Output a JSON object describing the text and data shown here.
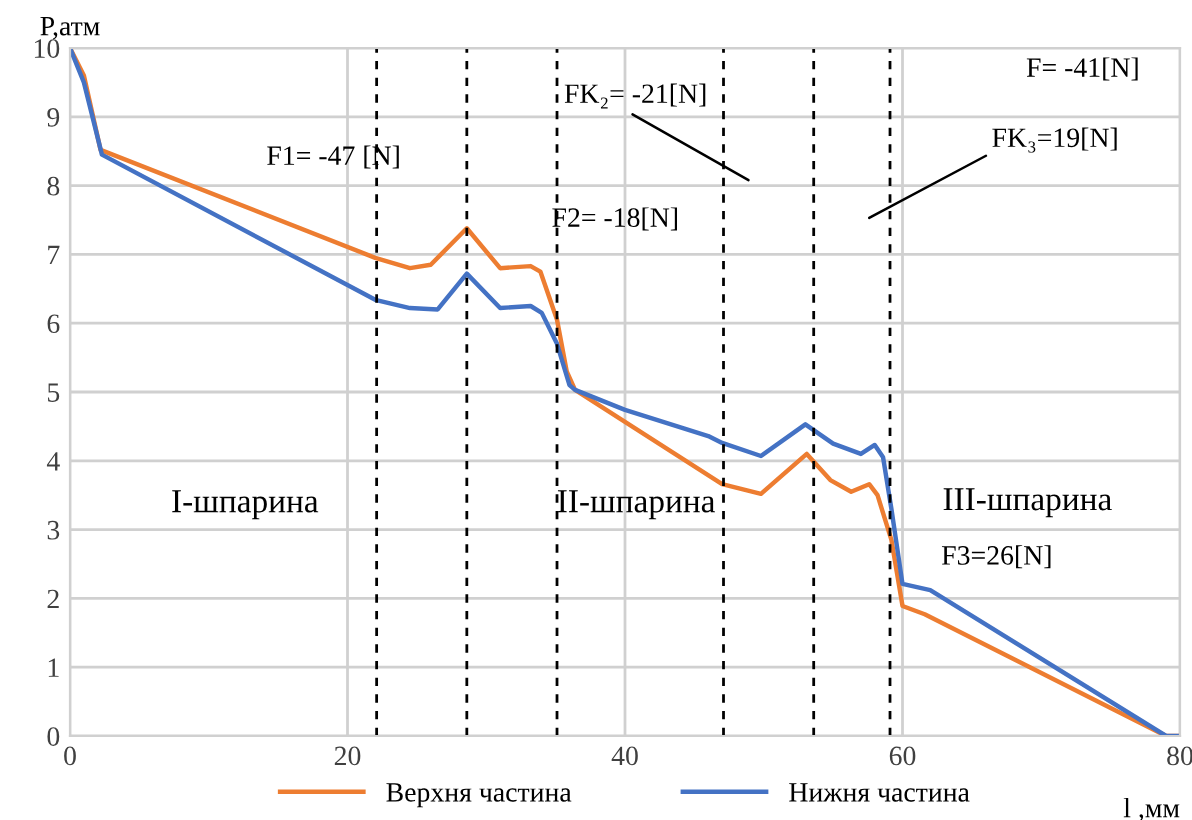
{
  "chart_data": {
    "type": "line",
    "xlabel": "l ,мм",
    "ylabel": "P,атм",
    "xlim": [
      0,
      80
    ],
    "xticks": [
      0,
      20,
      40,
      60,
      80
    ],
    "ylim": [
      0,
      10
    ],
    "yticks": [
      0,
      1,
      2,
      3,
      4,
      5,
      6,
      7,
      8,
      9,
      10
    ],
    "grid": true,
    "legend": "bottom",
    "marker": "none",
    "line_style": "solid",
    "series": [
      {
        "name": "Верхня частина",
        "color": "#ed7d31",
        "x": [
          0,
          1,
          2.2,
          22,
          24.5,
          26,
          28.6,
          31,
          33.2,
          33.9,
          35.1,
          35.8,
          36.4,
          47,
          49.8,
          53.1,
          54.8,
          56.3,
          57.6,
          58.2,
          59.2,
          60,
          61.6,
          79,
          80
        ],
        "values": [
          10,
          9.6,
          8.52,
          6.95,
          6.8,
          6.85,
          7.38,
          6.8,
          6.83,
          6.75,
          6.05,
          5.3,
          5.03,
          3.66,
          3.52,
          4.1,
          3.72,
          3.55,
          3.66,
          3.5,
          2.85,
          1.89,
          1.77,
          0,
          0
        ]
      },
      {
        "name": "Нижня частина",
        "color": "#4472c4",
        "x": [
          0,
          1,
          2.3,
          22,
          24.5,
          26.5,
          28.6,
          31,
          33.2,
          34,
          35.1,
          36,
          36.4,
          40,
          46,
          47,
          49.8,
          53,
          55,
          57,
          58,
          58.6,
          59.2,
          60,
          62,
          79,
          80
        ],
        "values": [
          10,
          9.5,
          8.45,
          6.34,
          6.22,
          6.2,
          6.72,
          6.22,
          6.25,
          6.15,
          5.7,
          5.1,
          5.03,
          4.74,
          4.36,
          4.26,
          4.07,
          4.53,
          4.25,
          4.1,
          4.23,
          4.05,
          3.3,
          2.21,
          2.12,
          0,
          0
        ]
      }
    ],
    "ref_lines": [
      {
        "axis": "x",
        "value": 22.1,
        "color": "#000000",
        "line_style": "dashed"
      },
      {
        "axis": "x",
        "value": 28.6,
        "color": "#000000",
        "line_style": "dashed"
      },
      {
        "axis": "x",
        "value": 35.1,
        "color": "#000000",
        "line_style": "dashed"
      },
      {
        "axis": "x",
        "value": 47.1,
        "color": "#000000",
        "line_style": "dashed"
      },
      {
        "axis": "x",
        "value": 53.6,
        "color": "#000000",
        "line_style": "dashed"
      },
      {
        "axis": "x",
        "value": 59.1,
        "color": "#000000",
        "line_style": "dashed"
      }
    ],
    "annotations": [
      "F1= -47 [N]",
      "FK₂= -21[N]",
      "F2= -18[N]",
      "F= -41[N]",
      "FK₃=19[N]",
      "I-шпарина",
      "II-шпарина",
      "III-шпарина",
      "F3=26[N]"
    ]
  }
}
